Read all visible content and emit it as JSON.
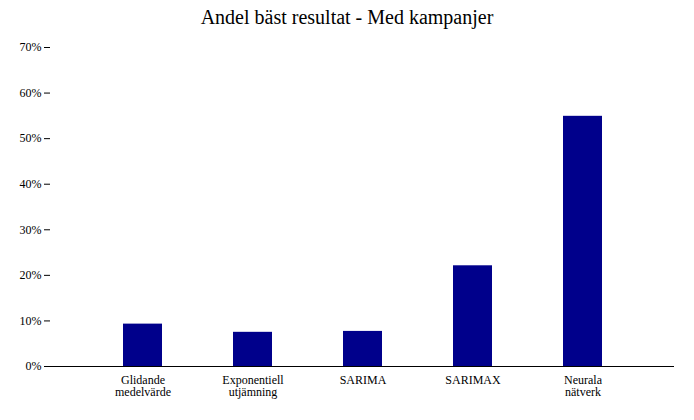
{
  "chart_data": {
    "type": "bar",
    "title": "Andel bäst resultat - Med kampanjer",
    "categories": [
      "Glidande\nmedelvärde",
      "Exponentiell\nutjämning",
      "SARIMA",
      "SARIMAX",
      "Neurala\nnätverk"
    ],
    "values": [
      0.093,
      0.075,
      0.077,
      0.221,
      0.549
    ],
    "color": "#00008B",
    "ylim": [
      0,
      0.7
    ],
    "yticks": [
      {
        "value": 0.0,
        "label": "0%"
      },
      {
        "value": 0.1,
        "label": "10%"
      },
      {
        "value": 0.2,
        "label": "20%"
      },
      {
        "value": 0.3,
        "label": "30%"
      },
      {
        "value": 0.4,
        "label": "40%"
      },
      {
        "value": 0.5,
        "label": "50%"
      },
      {
        "value": 0.6,
        "label": "60%"
      },
      {
        "value": 0.7,
        "label": "70%"
      }
    ],
    "grid": false
  }
}
